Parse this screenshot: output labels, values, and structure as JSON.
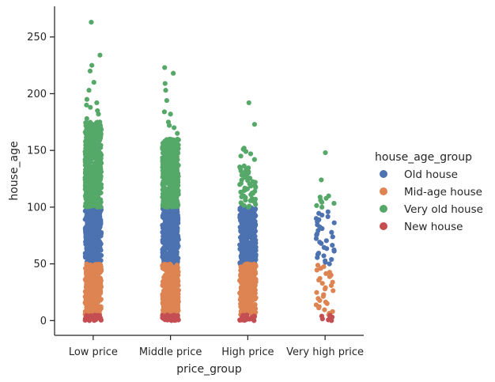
{
  "chart_data": {
    "type": "strip",
    "xlabel": "price_group",
    "ylabel": "house_age",
    "categories": [
      "Low price",
      "Middle price",
      "High price",
      "Very high price"
    ],
    "ylim": [
      -13,
      277
    ],
    "yticks": [
      0,
      50,
      100,
      150,
      200,
      250
    ],
    "grid": false,
    "legend": {
      "title": "house_age_group",
      "placement": "right",
      "entries": [
        {
          "name": "Old house",
          "color": "#4c72b0"
        },
        {
          "name": "Mid-age house",
          "color": "#dd8452"
        },
        {
          "name": "Very old house",
          "color": "#55a868"
        },
        {
          "name": "New house",
          "color": "#c44e52"
        }
      ]
    },
    "series": [
      {
        "name": "Old house",
        "color": "#4c72b0",
        "ranges": [
          {
            "category": "Low price",
            "min": 50,
            "max": 100,
            "density": "dense"
          },
          {
            "category": "Middle price",
            "min": 50,
            "max": 100,
            "density": "dense"
          },
          {
            "category": "High price",
            "min": 50,
            "max": 100,
            "density": "dense"
          },
          {
            "category": "Very high price",
            "min": 50,
            "max": 97,
            "density": "sparse"
          }
        ]
      },
      {
        "name": "Mid-age house",
        "color": "#dd8452",
        "ranges": [
          {
            "category": "Low price",
            "min": 5,
            "max": 50,
            "density": "dense"
          },
          {
            "category": "Middle price",
            "min": 5,
            "max": 50,
            "density": "dense"
          },
          {
            "category": "High price",
            "min": 5,
            "max": 50,
            "density": "dense"
          },
          {
            "category": "Very high price",
            "min": 5,
            "max": 50,
            "density": "sparse"
          }
        ]
      },
      {
        "name": "Very old house",
        "color": "#55a868",
        "ranges": [
          {
            "category": "Low price",
            "min": 100,
            "max": 175,
            "density": "dense"
          },
          {
            "category": "Middle price",
            "min": 100,
            "max": 160,
            "density": "dense"
          },
          {
            "category": "High price",
            "min": 100,
            "max": 137,
            "density": "medium"
          },
          {
            "category": "Very high price",
            "min": 100,
            "max": 110,
            "density": "sparse"
          }
        ],
        "outliers": [
          {
            "category": "Low price",
            "values": [
              263,
              234,
              225,
              220,
              210,
              203,
              195,
              192,
              190,
              188,
              185,
              182,
              178
            ]
          },
          {
            "category": "Middle price",
            "values": [
              223,
              218,
              209,
              203,
              194,
              184,
              182,
              175,
              172,
              170,
              165
            ]
          },
          {
            "category": "High price",
            "values": [
              192,
              173,
              152,
              151,
              149,
              147,
              145,
              142
            ]
          },
          {
            "category": "Very high price",
            "values": [
              148,
              124
            ]
          }
        ]
      },
      {
        "name": "New house",
        "color": "#c44e52",
        "ranges": [
          {
            "category": "Low price",
            "min": 0,
            "max": 5,
            "density": "dense"
          },
          {
            "category": "Middle price",
            "min": 0,
            "max": 5,
            "density": "dense"
          },
          {
            "category": "High price",
            "min": 0,
            "max": 5,
            "density": "dense"
          },
          {
            "category": "Very high price",
            "min": 0,
            "max": 5,
            "density": "medium"
          }
        ]
      }
    ]
  }
}
